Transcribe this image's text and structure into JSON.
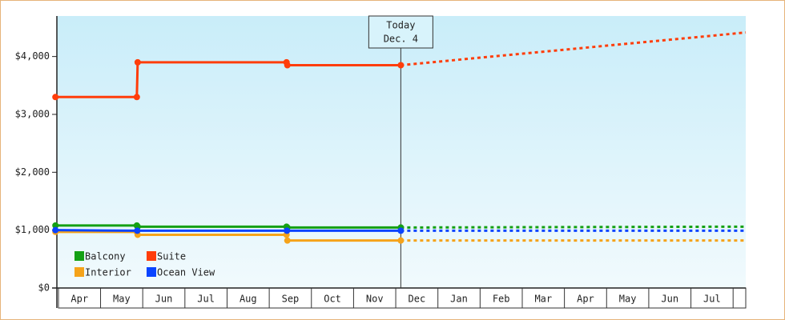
{
  "chart_data": {
    "type": "line",
    "xlim": [
      -0.15,
      16.3
    ],
    "ylim": [
      0,
      4700
    ],
    "xticks": [
      {
        "value": 0.5,
        "label": "Apr"
      },
      {
        "value": 1.5,
        "label": "May"
      },
      {
        "value": 2.5,
        "label": "Jun"
      },
      {
        "value": 3.5,
        "label": "Jul"
      },
      {
        "value": 4.5,
        "label": "Aug"
      },
      {
        "value": 5.5,
        "label": "Sep"
      },
      {
        "value": 6.5,
        "label": "Oct"
      },
      {
        "value": 7.5,
        "label": "Nov"
      },
      {
        "value": 8.5,
        "label": "Dec"
      },
      {
        "value": 9.5,
        "label": "Jan"
      },
      {
        "value": 10.5,
        "label": "Feb"
      },
      {
        "value": 11.5,
        "label": "Mar"
      },
      {
        "value": 12.5,
        "label": "Apr"
      },
      {
        "value": 13.5,
        "label": "May"
      },
      {
        "value": 14.5,
        "label": "Jun"
      },
      {
        "value": 15.5,
        "label": "Jul"
      }
    ],
    "yticks": [
      {
        "value": 0,
        "label": "$0"
      },
      {
        "value": 1000,
        "label": "$1,000"
      },
      {
        "value": 2000,
        "label": "$2,000"
      },
      {
        "value": 3000,
        "label": "$3,000"
      },
      {
        "value": 4000,
        "label": "$4,000"
      }
    ],
    "legend": "lower left",
    "today": {
      "x": 8.12,
      "label": [
        "Today",
        "Dec. 4"
      ]
    },
    "series": [
      {
        "name": "Balcony",
        "color": "#14a014",
        "x": [
          -0.07,
          1.86,
          1.88,
          5.41,
          5.43,
          8.12
        ],
        "values": [
          1080,
          1080,
          1060,
          1060,
          1045,
          1045
        ],
        "forecast": {
          "x": [
            8.12,
            16.3
          ],
          "values": [
            1045,
            1060
          ]
        }
      },
      {
        "name": "Suite",
        "color": "#ff3d0a",
        "x": [
          -0.07,
          1.86,
          1.88,
          5.41,
          5.43,
          8.12
        ],
        "values": [
          3300,
          3300,
          3900,
          3900,
          3850,
          3850
        ],
        "forecast": {
          "x": [
            8.12,
            16.3
          ],
          "values": [
            3850,
            4415
          ]
        }
      },
      {
        "name": "Interior",
        "color": "#f5a31a",
        "x": [
          -0.07,
          1.86,
          1.88,
          5.41,
          5.43,
          8.12
        ],
        "values": [
          970,
          970,
          920,
          920,
          820,
          820
        ],
        "forecast": {
          "x": [
            8.12,
            16.3
          ],
          "values": [
            820,
            820
          ]
        }
      },
      {
        "name": "Ocean View",
        "color": "#0a44ff",
        "x": [
          -0.07,
          1.87,
          5.42,
          8.12
        ],
        "values": [
          1000,
          990,
          990,
          990
        ],
        "forecast": {
          "x": [
            8.12,
            16.3
          ],
          "values": [
            990,
            990
          ]
        }
      }
    ]
  }
}
